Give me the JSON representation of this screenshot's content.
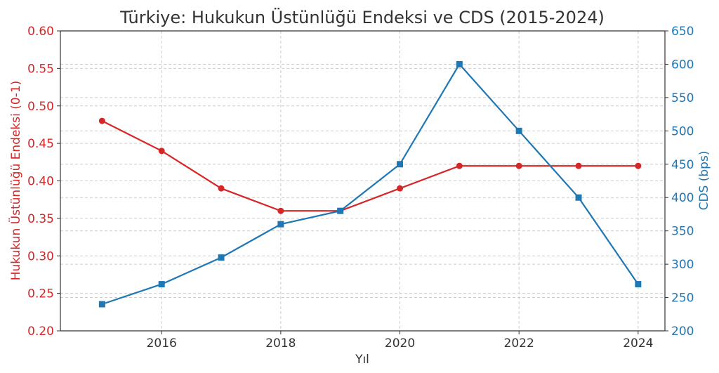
{
  "chart_data": {
    "type": "line",
    "title": "Türkiye: Hukukun Üstünlüğü Endeksi ve CDS (2015-2024)",
    "xlabel": "Yıl",
    "x": [
      2015,
      2016,
      2017,
      2018,
      2019,
      2020,
      2021,
      2022,
      2023,
      2024
    ],
    "x_ticks": [
      "2016",
      "2018",
      "2020",
      "2022",
      "2024"
    ],
    "xlim": [
      2014.3,
      2024.45
    ],
    "grid": true,
    "series": [
      {
        "name": "Hukukun Üstünlüğü Endeksi",
        "axis": "left",
        "color": "#d62728",
        "marker": "circle",
        "values": [
          0.48,
          0.44,
          0.39,
          0.36,
          0.36,
          0.39,
          0.42,
          0.42,
          0.42,
          0.42
        ]
      },
      {
        "name": "CDS",
        "axis": "right",
        "color": "#1f77b4",
        "marker": "square",
        "values": [
          240,
          270,
          310,
          360,
          380,
          450,
          600,
          500,
          400,
          270
        ]
      }
    ],
    "y_left": {
      "label": "Hukukun Üstünlüğü Endeksi (0-1)",
      "ylim": [
        0.2,
        0.6
      ],
      "ticks": [
        "0.20",
        "0.25",
        "0.30",
        "0.35",
        "0.40",
        "0.45",
        "0.50",
        "0.55",
        "0.60"
      ],
      "color": "#d62728"
    },
    "y_right": {
      "label": "CDS (bps)",
      "ylim": [
        200,
        650
      ],
      "ticks": [
        "200",
        "250",
        "300",
        "350",
        "400",
        "450",
        "500",
        "550",
        "600",
        "650"
      ],
      "color": "#1f77b4"
    }
  }
}
